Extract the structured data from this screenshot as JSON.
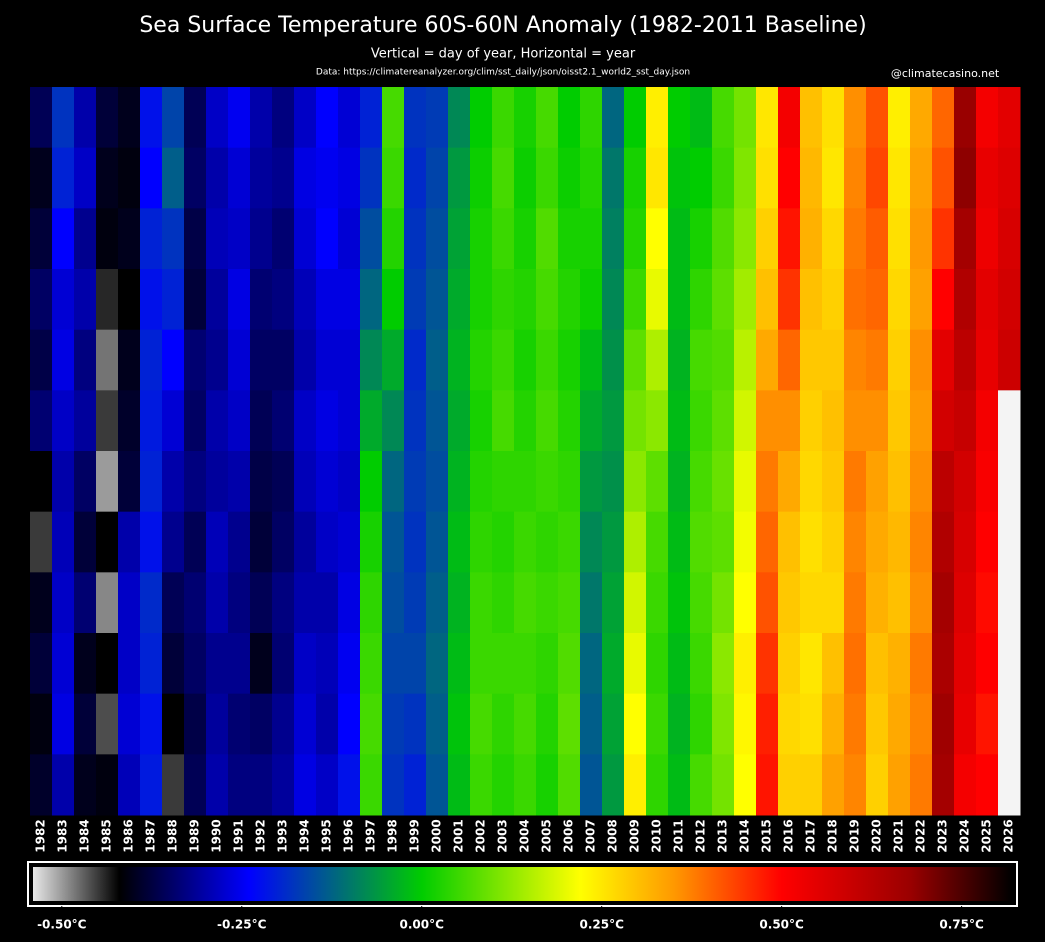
{
  "chart_data": {
    "type": "heatmap",
    "title": "Sea Surface Temperature 60S-60N Anomaly (1982-2011 Baseline)",
    "subtitle": "Vertical = day of year, Horizontal = year",
    "source": "Data: https://climatereanalyzer.org/clim/sst_daily/json/oisst2.1_world2_sst_day.json",
    "credit": "@climatecasino.net",
    "categories": [
      "1982",
      "1983",
      "1984",
      "1985",
      "1986",
      "1987",
      "1988",
      "1989",
      "1990",
      "1991",
      "1992",
      "1993",
      "1994",
      "1995",
      "1996",
      "1997",
      "1998",
      "1999",
      "2000",
      "2001",
      "2002",
      "2003",
      "2004",
      "2005",
      "2006",
      "2007",
      "2008",
      "2009",
      "2010",
      "2011",
      "2012",
      "2013",
      "2014",
      "2015",
      "2016",
      "2017",
      "2018",
      "2019",
      "2020",
      "2021",
      "2022",
      "2023",
      "2024",
      "2025",
      "2026"
    ],
    "values": [
      [
        -0.36,
        -0.4,
        -0.38,
        -0.35,
        -0.37,
        -0.34,
        -0.42,
        -0.45,
        -0.4,
        -0.38,
        -0.41,
        -0.39
      ],
      [
        -0.18,
        -0.2,
        -0.24,
        -0.27,
        -0.26,
        -0.28,
        -0.3,
        -0.29,
        -0.28,
        -0.27,
        -0.26,
        -0.3
      ],
      [
        -0.3,
        -0.28,
        -0.32,
        -0.3,
        -0.33,
        -0.31,
        -0.35,
        -0.38,
        -0.34,
        -0.4,
        -0.38,
        -0.4
      ],
      [
        -0.38,
        -0.4,
        -0.41,
        -0.44,
        -0.48,
        -0.45,
        -0.5,
        -0.42,
        -0.49,
        -0.42,
        -0.46,
        -0.41
      ],
      [
        -0.4,
        -0.41,
        -0.4,
        -0.42,
        -0.4,
        -0.39,
        -0.38,
        -0.3,
        -0.28,
        -0.28,
        -0.27,
        -0.29
      ],
      [
        -0.22,
        -0.24,
        -0.2,
        -0.22,
        -0.2,
        -0.21,
        -0.2,
        -0.22,
        -0.19,
        -0.2,
        -0.22,
        -0.21
      ],
      [
        -0.16,
        -0.13,
        -0.18,
        -0.2,
        -0.24,
        -0.27,
        -0.3,
        -0.32,
        -0.36,
        -0.38,
        -0.42,
        -0.45
      ],
      [
        -0.36,
        -0.35,
        -0.37,
        -0.38,
        -0.34,
        -0.35,
        -0.33,
        -0.36,
        -0.34,
        -0.35,
        -0.37,
        -0.36
      ],
      [
        -0.28,
        -0.3,
        -0.29,
        -0.31,
        -0.32,
        -0.3,
        -0.31,
        -0.29,
        -0.3,
        -0.32,
        -0.31,
        -0.3
      ],
      [
        -0.25,
        -0.27,
        -0.28,
        -0.26,
        -0.27,
        -0.28,
        -0.3,
        -0.32,
        -0.33,
        -0.32,
        -0.34,
        -0.33
      ],
      [
        -0.3,
        -0.31,
        -0.32,
        -0.34,
        -0.35,
        -0.36,
        -0.37,
        -0.38,
        -0.36,
        -0.4,
        -0.35,
        -0.33
      ],
      [
        -0.33,
        -0.32,
        -0.34,
        -0.33,
        -0.35,
        -0.34,
        -0.36,
        -0.35,
        -0.33,
        -0.34,
        -0.32,
        -0.31
      ],
      [
        -0.28,
        -0.26,
        -0.27,
        -0.29,
        -0.3,
        -0.28,
        -0.29,
        -0.31,
        -0.3,
        -0.28,
        -0.27,
        -0.26
      ],
      [
        -0.24,
        -0.25,
        -0.24,
        -0.26,
        -0.27,
        -0.26,
        -0.27,
        -0.28,
        -0.3,
        -0.29,
        -0.3,
        -0.28
      ],
      [
        -0.27,
        -0.26,
        -0.27,
        -0.26,
        -0.27,
        -0.27,
        -0.28,
        -0.27,
        -0.26,
        -0.25,
        -0.24,
        -0.22
      ],
      [
        -0.2,
        -0.18,
        -0.15,
        -0.12,
        -0.08,
        -0.04,
        0.0,
        0.02,
        0.04,
        0.05,
        0.06,
        0.05
      ],
      [
        0.06,
        0.05,
        0.03,
        0.0,
        -0.04,
        -0.08,
        -0.12,
        -0.14,
        -0.15,
        -0.16,
        -0.17,
        -0.18
      ],
      [
        -0.18,
        -0.19,
        -0.18,
        -0.17,
        -0.19,
        -0.18,
        -0.17,
        -0.18,
        -0.17,
        -0.16,
        -0.18,
        -0.2
      ],
      [
        -0.17,
        -0.16,
        -0.15,
        -0.14,
        -0.13,
        -0.14,
        -0.15,
        -0.14,
        -0.13,
        -0.12,
        -0.13,
        -0.14
      ],
      [
        -0.08,
        -0.06,
        -0.05,
        -0.04,
        -0.03,
        -0.04,
        -0.03,
        -0.02,
        -0.03,
        -0.02,
        -0.01,
        -0.02
      ],
      [
        0.0,
        0.01,
        0.02,
        0.02,
        0.03,
        0.02,
        0.03,
        0.04,
        0.05,
        0.05,
        0.06,
        0.05
      ],
      [
        0.05,
        0.06,
        0.05,
        0.04,
        0.05,
        0.06,
        0.04,
        0.03,
        0.04,
        0.05,
        0.04,
        0.03
      ],
      [
        0.02,
        0.01,
        0.02,
        0.03,
        0.02,
        0.03,
        0.04,
        0.05,
        0.06,
        0.05,
        0.06,
        0.05
      ],
      [
        0.06,
        0.05,
        0.07,
        0.06,
        0.05,
        0.06,
        0.05,
        0.04,
        0.05,
        0.04,
        0.03,
        0.02
      ],
      [
        0.0,
        0.01,
        0.02,
        0.03,
        0.02,
        0.03,
        0.04,
        0.05,
        0.06,
        0.07,
        0.08,
        0.07
      ],
      [
        0.04,
        0.03,
        0.02,
        0.01,
        -0.02,
        -0.04,
        -0.06,
        -0.08,
        -0.1,
        -0.12,
        -0.13,
        -0.14
      ],
      [
        -0.12,
        -0.1,
        -0.09,
        -0.08,
        -0.07,
        -0.06,
        -0.07,
        -0.06,
        -0.05,
        -0.04,
        -0.05,
        -0.06
      ],
      [
        0.0,
        0.02,
        0.03,
        0.05,
        0.08,
        0.1,
        0.12,
        0.15,
        0.18,
        0.2,
        0.22,
        0.24
      ],
      [
        0.24,
        0.25,
        0.22,
        0.2,
        0.15,
        0.12,
        0.08,
        0.06,
        0.05,
        0.04,
        0.05,
        0.04
      ],
      [
        0.0,
        -0.01,
        -0.02,
        -0.02,
        -0.03,
        -0.02,
        -0.03,
        -0.02,
        -0.01,
        -0.02,
        -0.03,
        -0.02
      ],
      [
        -0.02,
        0.0,
        0.02,
        0.04,
        0.06,
        0.05,
        0.06,
        0.07,
        0.06,
        0.05,
        0.04,
        0.06
      ],
      [
        0.06,
        0.05,
        0.07,
        0.08,
        0.07,
        0.08,
        0.09,
        0.08,
        0.1,
        0.12,
        0.11,
        0.1
      ],
      [
        0.1,
        0.11,
        0.12,
        0.14,
        0.16,
        0.18,
        0.2,
        0.21,
        0.22,
        0.24,
        0.23,
        0.22
      ],
      [
        0.25,
        0.26,
        0.28,
        0.3,
        0.33,
        0.36,
        0.38,
        0.4,
        0.42,
        0.45,
        0.47,
        0.48
      ],
      [
        0.52,
        0.5,
        0.48,
        0.45,
        0.4,
        0.36,
        0.33,
        0.3,
        0.29,
        0.28,
        0.27,
        0.28
      ],
      [
        0.3,
        0.31,
        0.32,
        0.3,
        0.29,
        0.28,
        0.27,
        0.26,
        0.27,
        0.25,
        0.26,
        0.28
      ],
      [
        0.26,
        0.25,
        0.27,
        0.28,
        0.29,
        0.3,
        0.29,
        0.28,
        0.27,
        0.3,
        0.32,
        0.34
      ],
      [
        0.36,
        0.37,
        0.38,
        0.39,
        0.37,
        0.36,
        0.38,
        0.37,
        0.38,
        0.39,
        0.38,
        0.37
      ],
      [
        0.42,
        0.43,
        0.41,
        0.4,
        0.38,
        0.36,
        0.34,
        0.33,
        0.32,
        0.3,
        0.29,
        0.28
      ],
      [
        0.24,
        0.25,
        0.26,
        0.27,
        0.28,
        0.29,
        0.3,
        0.31,
        0.3,
        0.32,
        0.33,
        0.34
      ],
      [
        0.33,
        0.34,
        0.35,
        0.34,
        0.36,
        0.35,
        0.36,
        0.37,
        0.36,
        0.38,
        0.37,
        0.38
      ],
      [
        0.4,
        0.42,
        0.45,
        0.5,
        0.55,
        0.58,
        0.62,
        0.64,
        0.66,
        0.65,
        0.67,
        0.66
      ],
      [
        0.68,
        0.69,
        0.66,
        0.64,
        0.62,
        0.6,
        0.58,
        0.57,
        0.56,
        0.55,
        0.54,
        0.52
      ],
      [
        0.52,
        0.54,
        0.53,
        0.55,
        0.54,
        0.52,
        0.51,
        0.5,
        0.49,
        0.5,
        0.48,
        0.5
      ],
      [
        0.55,
        0.56,
        0.57,
        0.58,
        0.59,
        null,
        null,
        null,
        null,
        null,
        null,
        null
      ]
    ],
    "zlim": [
      -0.54,
      0.82
    ],
    "colorscale": [
      {
        "value": -0.54,
        "color": "#e8e8e8"
      },
      {
        "value": -0.42,
        "color": "#000000"
      },
      {
        "value": -0.24,
        "color": "#0000ff"
      },
      {
        "value": 0.0,
        "color": "#00cc00"
      },
      {
        "value": 0.22,
        "color": "#ffff00"
      },
      {
        "value": 0.35,
        "color": "#ff9900"
      },
      {
        "value": 0.5,
        "color": "#ff0000"
      },
      {
        "value": 0.68,
        "color": "#990000"
      },
      {
        "value": 0.82,
        "color": "#000000"
      }
    ],
    "zticks": [
      {
        "value": -0.5,
        "label": "-0.50°C"
      },
      {
        "value": -0.25,
        "label": "-0.25°C"
      },
      {
        "value": 0,
        "label": "0.00°C"
      },
      {
        "value": 0.25,
        "label": "0.25°C"
      },
      {
        "value": 0.5,
        "label": "0.50°C"
      },
      {
        "value": 0.75,
        "label": "0.75°C"
      }
    ]
  }
}
